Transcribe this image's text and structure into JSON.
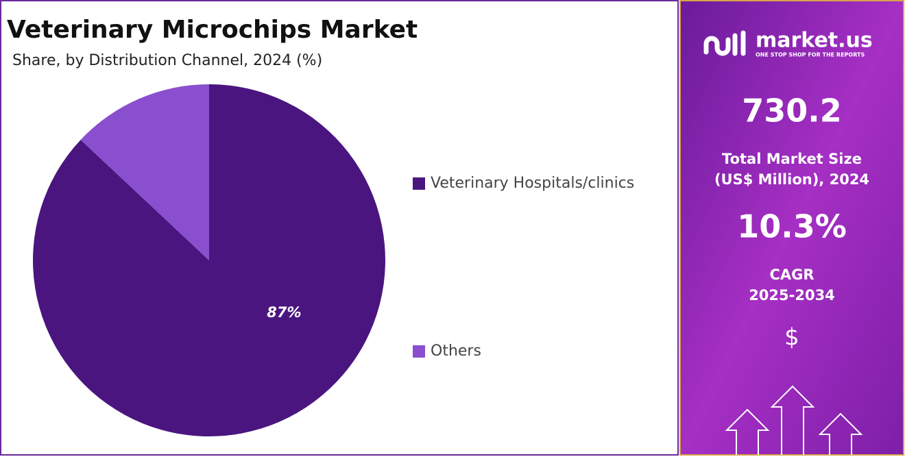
{
  "chart_data": {
    "type": "pie",
    "title": "Veterinary Microchips Market",
    "subtitle": "Share, by Distribution Channel, 2024 (%)",
    "categories": [
      "Veterinary Hospitals/clinics",
      "Others"
    ],
    "values": [
      87,
      13
    ],
    "value_labels": [
      "87%",
      null
    ],
    "colors": [
      "#4b1580",
      "#8a4fcf"
    ]
  },
  "side_panel": {
    "brand": "market.us",
    "tagline": "ONE STOP SHOP FOR THE REPORTS",
    "market_size": "730.2",
    "market_size_label_1": "Total Market Size",
    "market_size_label_2": "(US$ Million), 2024",
    "cagr": "10.3%",
    "cagr_label": "CAGR",
    "cagr_period": "2025-2034",
    "currency_icon": "$"
  }
}
